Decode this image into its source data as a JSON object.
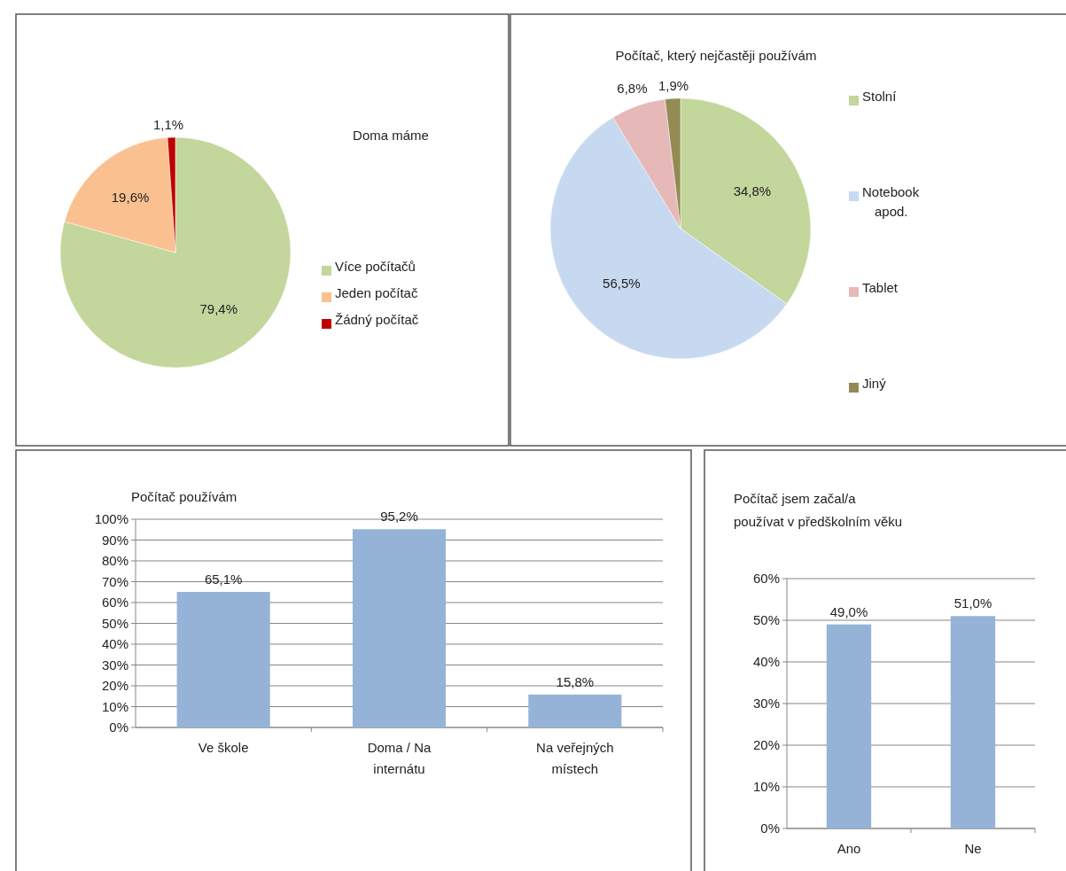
{
  "chart_data": [
    {
      "type": "pie",
      "title": "Doma máme",
      "categories": [
        "Více počítačů",
        "Jeden počítač",
        "Žádný počítač"
      ],
      "values": [
        79.4,
        19.6,
        1.1
      ],
      "colors": [
        "#c3d69b",
        "#fac090",
        "#c00000"
      ],
      "value_labels": [
        "79,4%",
        "19,6%",
        "1,1%"
      ],
      "legend": "right"
    },
    {
      "type": "pie",
      "title": "Počítač, který nejčastěji používám",
      "categories": [
        "Stolní",
        "Notebook apod.",
        "Tablet",
        "Jiný"
      ],
      "values": [
        34.8,
        56.5,
        6.8,
        1.9
      ],
      "colors": [
        "#c3d69b",
        "#c6d9f1",
        "#e6b9b8",
        "#948a54"
      ],
      "value_labels": [
        "34,8%",
        "56,5%",
        "6,8%",
        "1,9%"
      ],
      "legend": "right"
    },
    {
      "type": "bar",
      "title": "Počítač používám",
      "categories": [
        "Ve škole",
        "Doma / Na internátu",
        "Na veřejných místech"
      ],
      "values": [
        65.1,
        95.2,
        15.8
      ],
      "color": "#95b3d7",
      "value_labels": [
        "65,1%",
        "95,2%",
        "15,8%"
      ],
      "ylim": [
        0,
        100
      ],
      "yticks": [
        {
          "value": 0,
          "label": "0%"
        },
        {
          "value": 10,
          "label": "10%"
        },
        {
          "value": 20,
          "label": "20%"
        },
        {
          "value": 30,
          "label": "30%"
        },
        {
          "value": 40,
          "label": "40%"
        },
        {
          "value": 50,
          "label": "50%"
        },
        {
          "value": 60,
          "label": "60%"
        },
        {
          "value": 70,
          "label": "70%"
        },
        {
          "value": 80,
          "label": "80%"
        },
        {
          "value": 90,
          "label": "90%"
        },
        {
          "value": 100,
          "label": "100%"
        }
      ],
      "grid": "y"
    },
    {
      "type": "bar",
      "title": "Počítač jsem začal/a používat v předškolním věku",
      "categories": [
        "Ano",
        "Ne"
      ],
      "values": [
        49.0,
        51.0
      ],
      "color": "#95b3d7",
      "value_labels": [
        "49,0%",
        "51,0%"
      ],
      "ylim": [
        0,
        60
      ],
      "yticks": [
        {
          "value": 0,
          "label": "0%"
        },
        {
          "value": 10,
          "label": "10%"
        },
        {
          "value": 20,
          "label": "20%"
        },
        {
          "value": 30,
          "label": "30%"
        },
        {
          "value": 40,
          "label": "40%"
        },
        {
          "value": 50,
          "label": "50%"
        },
        {
          "value": 60,
          "label": "60%"
        }
      ],
      "grid": "y"
    }
  ]
}
